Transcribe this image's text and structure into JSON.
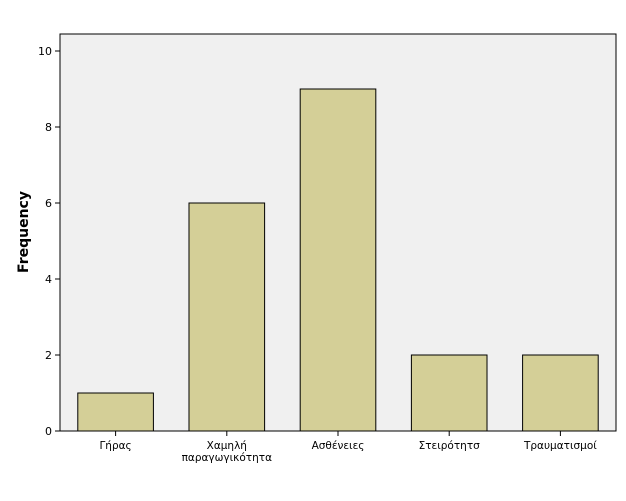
{
  "chart_data": {
    "type": "bar",
    "categories": [
      "Γήρας",
      "Χαμηλή παραγωγικότητα",
      "Ασθένειες",
      "Στειρότητσ",
      "Τραυματισμοί"
    ],
    "category_lines": [
      [
        "Γήρας"
      ],
      [
        "Χαμηλή",
        "παραγωγικότητα"
      ],
      [
        "Ασθένειες"
      ],
      [
        "Στειρότητσ"
      ],
      [
        "Τραυματισμοί"
      ]
    ],
    "values": [
      1,
      6,
      9,
      2,
      2
    ],
    "title": "",
    "xlabel": "",
    "ylabel": "Frequency",
    "ylim": [
      0,
      10
    ],
    "yticks": [
      0,
      2,
      4,
      6,
      8,
      10
    ],
    "grid": false,
    "colors": {
      "plot_background": "#f0f0f0",
      "bar_fill": "#d4cf97",
      "bar_stroke": "#000000",
      "axis": "#000000"
    }
  }
}
